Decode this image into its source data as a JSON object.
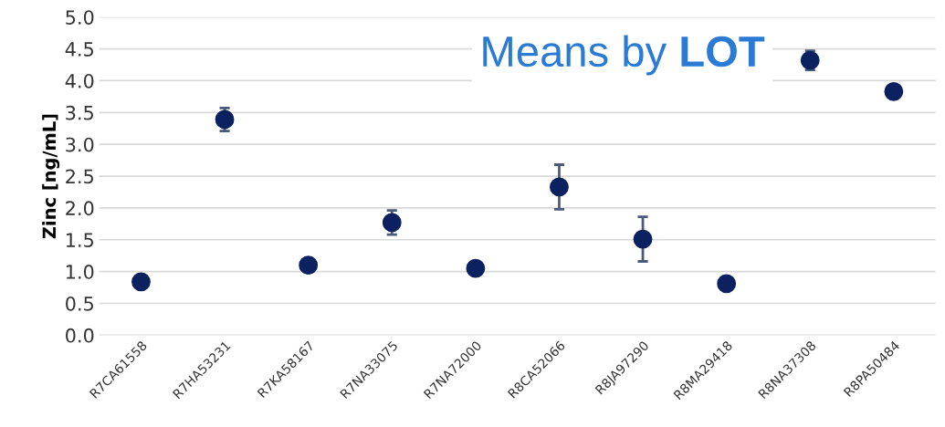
{
  "chart_data": {
    "type": "scatter",
    "title": "Means by LOT",
    "ylabel": "Zinc [ng/mL]",
    "categories": [
      "R7CA61558",
      "R7HA53231",
      "R7KA58167",
      "R7NA33075",
      "R7NA72000",
      "R8CA52066",
      "R8JA97290",
      "R8MA29418",
      "R8NA37308",
      "R8PA50484"
    ],
    "series": [
      {
        "color": "#0b2160",
        "values": [
          0.84,
          3.39,
          1.1,
          1.77,
          1.05,
          2.33,
          1.51,
          0.81,
          4.32,
          3.83
        ],
        "errors": [
          null,
          0.18,
          null,
          0.19,
          null,
          0.35,
          0.35,
          null,
          0.15,
          null
        ]
      }
    ],
    "ylim": [
      0,
      5
    ],
    "yticks": [
      {
        "value": 0,
        "label": "0.0"
      },
      {
        "value": 0.5,
        "label": "0.5"
      },
      {
        "value": 1,
        "label": "1.0"
      },
      {
        "value": 1.5,
        "label": "1.5"
      },
      {
        "value": 2,
        "label": "2.0"
      },
      {
        "value": 2.5,
        "label": "2.5"
      },
      {
        "value": 3,
        "label": "3.0"
      },
      {
        "value": 3.5,
        "label": "3.5"
      },
      {
        "value": 4,
        "label": "4.0"
      },
      {
        "value": 4.5,
        "label": "4.5"
      },
      {
        "value": 5,
        "label": "5.0"
      }
    ],
    "grid": "y",
    "marker": "circle",
    "legend": false
  }
}
